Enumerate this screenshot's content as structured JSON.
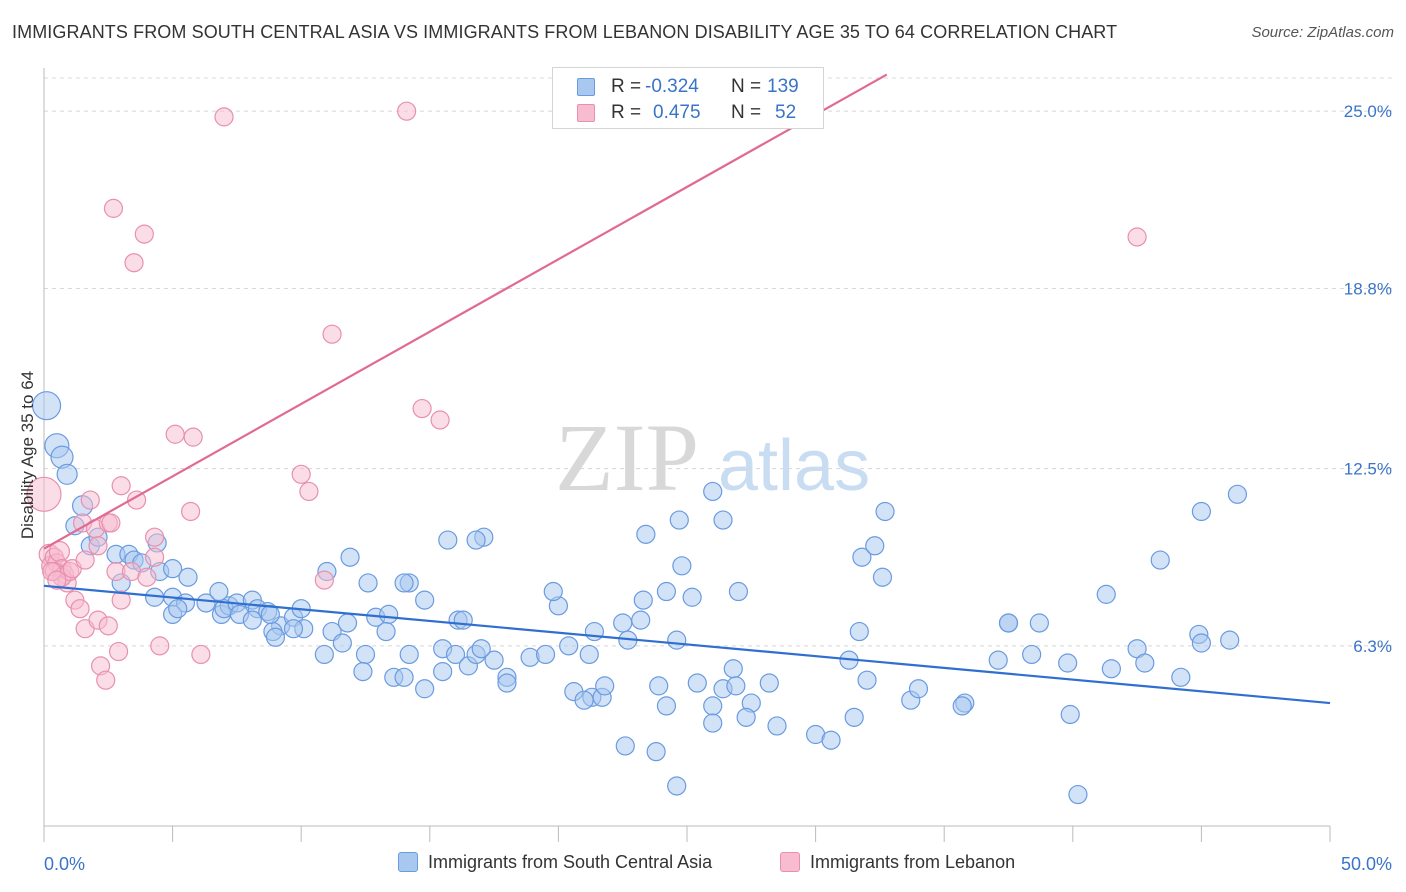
{
  "title": "IMMIGRANTS FROM SOUTH CENTRAL ASIA VS IMMIGRANTS FROM LEBANON DISABILITY AGE 35 TO 64 CORRELATION CHART",
  "source": "Source: ZipAtlas.com",
  "watermark": {
    "zip": "ZIP",
    "atlas": "atlas"
  },
  "legend": {
    "rows": [
      {
        "r_label": "R =",
        "r_value": "-0.324",
        "n_label": "N =",
        "n_value": "139",
        "color": "#a8c8f0",
        "border": "#6a9be0"
      },
      {
        "r_label": "R =",
        "r_value": "0.475",
        "n_label": "N =",
        "n_value": "52",
        "color": "#f8bcd0",
        "border": "#e890ad"
      }
    ]
  },
  "bottom_legend": [
    {
      "label": "Immigrants from South Central Asia",
      "color": "#a8c8f0",
      "border": "#6a9be0"
    },
    {
      "label": "Immigrants from Lebanon",
      "color": "#f8bcd0",
      "border": "#e890ad"
    }
  ],
  "chart_data": {
    "type": "scatter",
    "title": "IMMIGRANTS FROM SOUTH CENTRAL ASIA VS IMMIGRANTS FROM LEBANON DISABILITY AGE 35 TO 64 CORRELATION CHART",
    "xlabel": "",
    "ylabel": "Disability Age 35 to 64",
    "xlim": [
      0,
      50
    ],
    "ylim": [
      0,
      26.3
    ],
    "x_tick_labels": [
      "0.0%",
      "50.0%"
    ],
    "y_ticks": [
      6.3,
      12.5,
      18.8,
      25.0
    ],
    "y_tick_labels": [
      "6.3%",
      "12.5%",
      "18.8%",
      "25.0%"
    ],
    "grid": "horizontal dashed",
    "series": [
      {
        "name": "Immigrants from South Central Asia",
        "color": "#6a9be0",
        "fill": "#a8c8f0",
        "r": -0.324,
        "n": 139,
        "trend": {
          "x": [
            0,
            50
          ],
          "y": [
            8.4,
            4.3
          ]
        },
        "points": [
          [
            0.1,
            14.7,
            13
          ],
          [
            0.5,
            13.3,
            11
          ],
          [
            0.7,
            12.9,
            10
          ],
          [
            0.9,
            12.3,
            9
          ],
          [
            1.5,
            11.2,
            9
          ],
          [
            1.2,
            10.5,
            8
          ],
          [
            1.8,
            9.8,
            8
          ],
          [
            2.1,
            10.1,
            8
          ],
          [
            2.8,
            9.5,
            8
          ],
          [
            3.3,
            9.5,
            8
          ],
          [
            3.0,
            8.5,
            8
          ],
          [
            3.5,
            9.3,
            8
          ],
          [
            3.8,
            9.2,
            8
          ],
          [
            4.4,
            9.9,
            8
          ],
          [
            4.5,
            8.9,
            8
          ],
          [
            5.0,
            9.0,
            8
          ],
          [
            5.0,
            8.0,
            8
          ],
          [
            4.3,
            8.0,
            8
          ],
          [
            5.5,
            7.8,
            8
          ],
          [
            5.0,
            7.4,
            8
          ],
          [
            5.2,
            7.6,
            8
          ],
          [
            5.6,
            8.7,
            8
          ],
          [
            6.3,
            7.8,
            8
          ],
          [
            6.9,
            7.4,
            8
          ],
          [
            7.2,
            7.7,
            8
          ],
          [
            7.0,
            7.6,
            8
          ],
          [
            6.8,
            8.2,
            8
          ],
          [
            7.5,
            7.8,
            8
          ],
          [
            8.1,
            7.9,
            8
          ],
          [
            7.6,
            7.4,
            8
          ],
          [
            8.3,
            7.6,
            8
          ],
          [
            8.7,
            7.5,
            8
          ],
          [
            8.1,
            7.2,
            8
          ],
          [
            9.2,
            7.0,
            8
          ],
          [
            8.9,
            6.8,
            8
          ],
          [
            8.8,
            7.4,
            8
          ],
          [
            9.7,
            7.3,
            8
          ],
          [
            10.1,
            6.9,
            8
          ],
          [
            11.2,
            6.8,
            8
          ],
          [
            11.6,
            6.4,
            8
          ],
          [
            11.8,
            7.1,
            8
          ],
          [
            10.9,
            6.0,
            8
          ],
          [
            12.5,
            6.0,
            8
          ],
          [
            9.7,
            6.9,
            8
          ],
          [
            10.0,
            7.6,
            8
          ],
          [
            9.0,
            6.6,
            8
          ],
          [
            11.0,
            8.9,
            8
          ],
          [
            11.9,
            9.4,
            8
          ],
          [
            12.6,
            8.5,
            8
          ],
          [
            12.9,
            7.3,
            8
          ],
          [
            13.4,
            7.4,
            8
          ],
          [
            14.2,
            8.5,
            8
          ],
          [
            14.0,
            8.5,
            8
          ],
          [
            14.8,
            7.9,
            8
          ],
          [
            13.3,
            6.8,
            8
          ],
          [
            14.2,
            6.0,
            8
          ],
          [
            12.4,
            5.4,
            8
          ],
          [
            13.6,
            5.2,
            8
          ],
          [
            14.0,
            5.2,
            8
          ],
          [
            14.8,
            4.8,
            8
          ],
          [
            15.5,
            6.2,
            8
          ],
          [
            16.0,
            6.0,
            8
          ],
          [
            16.1,
            7.2,
            8
          ],
          [
            16.3,
            7.2,
            8
          ],
          [
            15.5,
            5.4,
            8
          ],
          [
            16.5,
            5.6,
            8
          ],
          [
            16.8,
            6.0,
            8
          ],
          [
            17.5,
            5.8,
            8
          ],
          [
            17.0,
            6.2,
            8
          ],
          [
            18.0,
            5.2,
            8
          ],
          [
            18.0,
            5.0,
            8
          ],
          [
            18.9,
            5.9,
            8
          ],
          [
            19.5,
            6.0,
            8
          ],
          [
            20.0,
            7.7,
            8
          ],
          [
            20.4,
            6.3,
            8
          ],
          [
            21.2,
            6.0,
            8
          ],
          [
            19.8,
            8.2,
            8
          ],
          [
            20.6,
            4.7,
            8
          ],
          [
            21.3,
            4.5,
            8
          ],
          [
            21.7,
            4.5,
            8
          ],
          [
            17.1,
            10.1,
            8
          ],
          [
            16.8,
            10.0,
            8
          ],
          [
            15.7,
            10.0,
            8
          ],
          [
            21.0,
            4.4,
            8
          ],
          [
            21.4,
            6.8,
            8
          ],
          [
            21.8,
            4.9,
            8
          ],
          [
            22.5,
            7.1,
            8
          ],
          [
            22.7,
            6.5,
            8
          ],
          [
            23.3,
            7.9,
            8
          ],
          [
            23.2,
            7.2,
            8
          ],
          [
            23.9,
            4.9,
            8
          ],
          [
            24.2,
            4.2,
            8
          ],
          [
            25.4,
            5.0,
            8
          ],
          [
            24.6,
            6.5,
            8
          ],
          [
            23.4,
            10.2,
            8
          ],
          [
            24.2,
            8.2,
            8
          ],
          [
            26.0,
            4.2,
            8
          ],
          [
            26.0,
            3.6,
            8
          ],
          [
            26.4,
            4.8,
            8
          ],
          [
            26.8,
            5.5,
            8
          ],
          [
            26.9,
            4.9,
            8
          ],
          [
            27.5,
            4.3,
            8
          ],
          [
            28.2,
            5.0,
            8
          ],
          [
            27.0,
            8.2,
            8
          ],
          [
            26.4,
            10.7,
            8
          ],
          [
            26.0,
            11.7,
            8
          ],
          [
            24.7,
            10.7,
            8
          ],
          [
            24.8,
            9.1,
            8
          ],
          [
            25.2,
            8.0,
            8
          ],
          [
            22.6,
            2.8,
            8
          ],
          [
            24.6,
            1.4,
            8
          ],
          [
            23.8,
            2.6,
            8
          ],
          [
            27.3,
            3.8,
            8
          ],
          [
            28.5,
            3.5,
            8
          ],
          [
            30.0,
            3.2,
            8
          ],
          [
            30.6,
            3.0,
            8
          ],
          [
            31.5,
            3.8,
            8
          ],
          [
            32.0,
            5.1,
            8
          ],
          [
            31.3,
            5.8,
            8
          ],
          [
            31.7,
            6.8,
            8
          ],
          [
            31.8,
            9.4,
            8
          ],
          [
            32.6,
            8.7,
            8
          ],
          [
            32.3,
            9.8,
            8
          ],
          [
            32.7,
            11.0,
            8
          ],
          [
            33.7,
            4.4,
            8
          ],
          [
            34.0,
            4.8,
            8
          ],
          [
            35.8,
            4.3,
            8
          ],
          [
            35.7,
            4.2,
            8
          ],
          [
            37.1,
            5.8,
            8
          ],
          [
            37.5,
            7.1,
            8
          ],
          [
            37.5,
            7.1,
            8
          ],
          [
            38.7,
            7.1,
            8
          ],
          [
            38.4,
            6.0,
            8
          ],
          [
            39.8,
            5.7,
            8
          ],
          [
            39.9,
            3.9,
            8
          ],
          [
            40.2,
            1.1,
            8
          ],
          [
            41.5,
            5.5,
            8
          ],
          [
            41.3,
            8.1,
            8
          ],
          [
            42.5,
            6.2,
            8
          ],
          [
            42.8,
            5.7,
            8
          ],
          [
            43.4,
            9.3,
            8
          ],
          [
            44.9,
            6.7,
            8
          ],
          [
            44.2,
            5.2,
            8
          ],
          [
            45.0,
            6.4,
            8
          ],
          [
            45.0,
            11.0,
            8
          ],
          [
            46.4,
            11.6,
            8
          ],
          [
            46.1,
            6.5,
            8
          ]
        ]
      },
      {
        "name": "Immigrants from Lebanon",
        "color": "#e890ad",
        "fill": "#f8bcd0",
        "r": 0.475,
        "n": 52,
        "trend": {
          "x": [
            0,
            50
          ],
          "y": [
            9.7,
            35.0
          ]
        },
        "points": [
          [
            0.0,
            11.6,
            16
          ],
          [
            0.2,
            9.5,
            9
          ],
          [
            0.3,
            9.1,
            9
          ],
          [
            0.4,
            9.4,
            8
          ],
          [
            0.5,
            9.2,
            8
          ],
          [
            0.6,
            9.6,
            9
          ],
          [
            0.7,
            9.0,
            8
          ],
          [
            0.4,
            8.9,
            8
          ],
          [
            0.8,
            8.8,
            8
          ],
          [
            0.9,
            8.5,
            8
          ],
          [
            0.7,
            8.7,
            8
          ],
          [
            1.0,
            8.9,
            8
          ],
          [
            0.3,
            8.9,
            8
          ],
          [
            0.5,
            8.6,
            8
          ],
          [
            1.1,
            9.0,
            8
          ],
          [
            1.2,
            7.9,
            8
          ],
          [
            1.4,
            7.6,
            8
          ],
          [
            1.6,
            6.9,
            8
          ],
          [
            1.8,
            11.4,
            8
          ],
          [
            1.5,
            10.6,
            8
          ],
          [
            2.0,
            10.4,
            8
          ],
          [
            2.1,
            9.8,
            8
          ],
          [
            1.6,
            9.3,
            8
          ],
          [
            2.5,
            10.6,
            8
          ],
          [
            2.6,
            10.6,
            8
          ],
          [
            2.8,
            8.9,
            8
          ],
          [
            2.1,
            7.2,
            8
          ],
          [
            2.5,
            7.0,
            8
          ],
          [
            2.2,
            5.6,
            8
          ],
          [
            2.4,
            5.1,
            8
          ],
          [
            2.9,
            6.1,
            8
          ],
          [
            3.0,
            7.9,
            8
          ],
          [
            3.0,
            11.9,
            8
          ],
          [
            3.4,
            8.9,
            8
          ],
          [
            3.6,
            11.4,
            8
          ],
          [
            4.0,
            8.7,
            8
          ],
          [
            4.3,
            9.4,
            8
          ],
          [
            4.3,
            10.1,
            8
          ],
          [
            4.5,
            6.3,
            8
          ],
          [
            5.1,
            13.7,
            8
          ],
          [
            5.7,
            11.0,
            8
          ],
          [
            6.1,
            6.0,
            8
          ],
          [
            2.7,
            21.6,
            8
          ],
          [
            3.5,
            19.7,
            8
          ],
          [
            3.9,
            20.7,
            8
          ],
          [
            5.8,
            13.6,
            8
          ],
          [
            7.0,
            24.8,
            8
          ],
          [
            10.0,
            12.3,
            8
          ],
          [
            11.2,
            17.2,
            8
          ],
          [
            10.3,
            11.7,
            8
          ],
          [
            10.9,
            8.6,
            8
          ],
          [
            14.7,
            14.6,
            8
          ],
          [
            15.4,
            14.2,
            8
          ],
          [
            14.1,
            25.0,
            8
          ],
          [
            42.5,
            20.6,
            8
          ]
        ]
      }
    ]
  }
}
